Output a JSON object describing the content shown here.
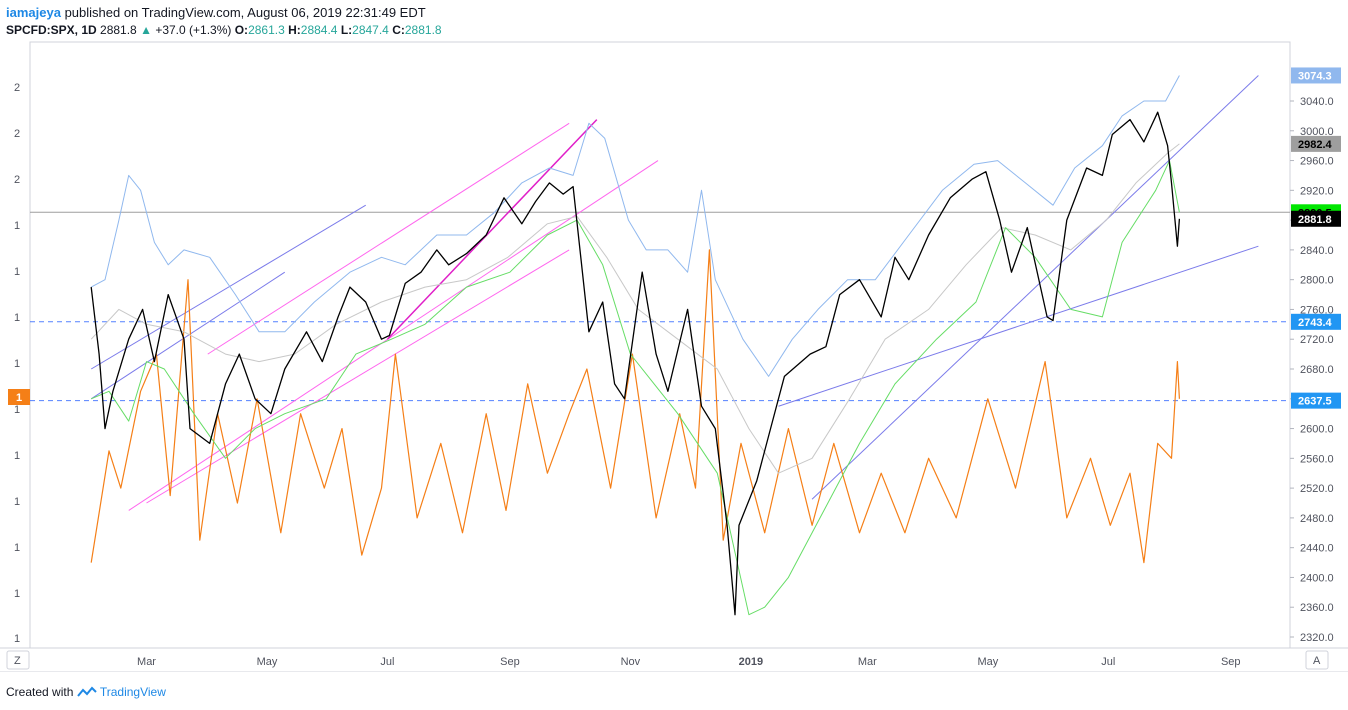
{
  "header": {
    "author": "iamajeya",
    "published": "published on TradingView.com, August 06, 2019 22:31:49 EDT"
  },
  "ticker": {
    "symbol": "SPCFD:SPX, 1D",
    "last": "2881.8",
    "change": "+37.0 (+1.3%)",
    "o_label": "O:",
    "o": "2861.3",
    "h_label": "H:",
    "h": "2884.4",
    "l_label": "L:",
    "l": "2847.4",
    "c_label": "C:",
    "c": "2881.8"
  },
  "footer": {
    "created": "Created with",
    "brand": "TradingView"
  },
  "toolbar": {
    "left": "Z",
    "right": "A"
  },
  "colors": {
    "price": "#000000",
    "upper_band": "#90b8ee",
    "mid_band": "#c8c8c8",
    "lower_band": "#66dd66",
    "oscillator": "#f57f17",
    "channel": "#7b7bea",
    "pink": "#ff66ee",
    "magenta": "#e020c8",
    "hline": "#2962ff"
  },
  "chart_data": {
    "type": "line",
    "x_ticks": [
      "Mar",
      "May",
      "Jul",
      "Sep",
      "Nov",
      "2019",
      "Mar",
      "May",
      "Jul",
      "Sep"
    ],
    "y_ticks": [
      3040.0,
      3000.0,
      2960.0,
      2920.0,
      2880.0,
      2840.0,
      2800.0,
      2760.0,
      2720.0,
      2680.0,
      2640.0,
      2600.0,
      2560.0,
      2520.0,
      2480.0,
      2440.0,
      2400.0,
      2360.0,
      2320.0
    ],
    "ylim": [
      2310,
      3095
    ],
    "left_ticks": [
      "2",
      "2",
      "2",
      "1",
      "1",
      "1",
      "1",
      "1",
      "1",
      "1",
      "1",
      "1",
      "1"
    ],
    "oscillator_marker": "1",
    "price_labels": [
      {
        "value": 3074.3,
        "text": "3074.3",
        "bg": "#90b8ee",
        "fg": "#ffffff"
      },
      {
        "value": 2982.4,
        "text": "2982.4",
        "bg": "#9e9e9e",
        "fg": "#000000"
      },
      {
        "value": 2890.5,
        "text": "2890.5",
        "bg": "#00e600",
        "fg": "#000000"
      },
      {
        "value": 2881.8,
        "text": "2881.8",
        "bg": "#000000",
        "fg": "#ffffff"
      },
      {
        "value": 2743.4,
        "text": "2743.4",
        "bg": "#2196f3",
        "fg": "#ffffff"
      },
      {
        "value": 2637.5,
        "text": "2637.5",
        "bg": "#2196f3",
        "fg": "#ffffff"
      }
    ],
    "horizontal_lines": [
      {
        "value": 2890.5,
        "style": "solid",
        "color": "#9e9e9e"
      },
      {
        "value": 2743.4,
        "style": "dashed",
        "color": "#2962ff"
      },
      {
        "value": 2637.5,
        "style": "dashed",
        "color": "#2962ff"
      }
    ],
    "price_series": {
      "name": "",
      "points": [
        [
          "2018-02-01",
          2790
        ],
        [
          "2018-02-05",
          2700
        ],
        [
          "2018-02-08",
          2600
        ],
        [
          "2018-02-12",
          2650
        ],
        [
          "2018-02-20",
          2720
        ],
        [
          "2018-02-27",
          2760
        ],
        [
          "2018-03-05",
          2690
        ],
        [
          "2018-03-12",
          2780
        ],
        [
          "2018-03-20",
          2720
        ],
        [
          "2018-03-23",
          2600
        ],
        [
          "2018-04-02",
          2580
        ],
        [
          "2018-04-10",
          2660
        ],
        [
          "2018-04-17",
          2700
        ],
        [
          "2018-04-25",
          2640
        ],
        [
          "2018-05-03",
          2620
        ],
        [
          "2018-05-10",
          2680
        ],
        [
          "2018-05-21",
          2730
        ],
        [
          "2018-05-29",
          2690
        ],
        [
          "2018-06-06",
          2750
        ],
        [
          "2018-06-12",
          2790
        ],
        [
          "2018-06-20",
          2770
        ],
        [
          "2018-06-28",
          2720
        ],
        [
          "2018-07-02",
          2725
        ],
        [
          "2018-07-10",
          2795
        ],
        [
          "2018-07-18",
          2810
        ],
        [
          "2018-07-26",
          2840
        ],
        [
          "2018-08-01",
          2820
        ],
        [
          "2018-08-10",
          2835
        ],
        [
          "2018-08-20",
          2860
        ],
        [
          "2018-08-29",
          2910
        ],
        [
          "2018-09-07",
          2875
        ],
        [
          "2018-09-14",
          2905
        ],
        [
          "2018-09-21",
          2930
        ],
        [
          "2018-09-28",
          2915
        ],
        [
          "2018-10-03",
          2925
        ],
        [
          "2018-10-11",
          2730
        ],
        [
          "2018-10-18",
          2770
        ],
        [
          "2018-10-24",
          2660
        ],
        [
          "2018-10-29",
          2640
        ],
        [
          "2018-11-07",
          2810
        ],
        [
          "2018-11-14",
          2700
        ],
        [
          "2018-11-20",
          2650
        ],
        [
          "2018-11-30",
          2760
        ],
        [
          "2018-12-07",
          2630
        ],
        [
          "2018-12-14",
          2600
        ],
        [
          "2018-12-20",
          2470
        ],
        [
          "2018-12-24",
          2350
        ],
        [
          "2018-12-26",
          2470
        ],
        [
          "2019-01-04",
          2530
        ],
        [
          "2019-01-10",
          2590
        ],
        [
          "2019-01-18",
          2670
        ],
        [
          "2019-01-31",
          2700
        ],
        [
          "2019-02-08",
          2710
        ],
        [
          "2019-02-15",
          2780
        ],
        [
          "2019-02-25",
          2800
        ],
        [
          "2019-03-08",
          2750
        ],
        [
          "2019-03-15",
          2830
        ],
        [
          "2019-03-22",
          2800
        ],
        [
          "2019-04-01",
          2860
        ],
        [
          "2019-04-12",
          2910
        ],
        [
          "2019-04-23",
          2935
        ],
        [
          "2019-04-30",
          2945
        ],
        [
          "2019-05-07",
          2880
        ],
        [
          "2019-05-13",
          2810
        ],
        [
          "2019-05-21",
          2870
        ],
        [
          "2019-05-31",
          2750
        ],
        [
          "2019-06-03",
          2745
        ],
        [
          "2019-06-10",
          2880
        ],
        [
          "2019-06-20",
          2950
        ],
        [
          "2019-06-28",
          2940
        ],
        [
          "2019-07-03",
          2995
        ],
        [
          "2019-07-12",
          3015
        ],
        [
          "2019-07-19",
          2985
        ],
        [
          "2019-07-26",
          3025
        ],
        [
          "2019-07-31",
          2980
        ],
        [
          "2019-08-02",
          2930
        ],
        [
          "2019-08-05",
          2845
        ],
        [
          "2019-08-06",
          2881.8
        ]
      ]
    },
    "upper_band": {
      "name": "",
      "points": [
        [
          "2018-02-01",
          2790
        ],
        [
          "2018-02-08",
          2800
        ],
        [
          "2018-02-15",
          2880
        ],
        [
          "2018-02-20",
          2940
        ],
        [
          "2018-02-26",
          2920
        ],
        [
          "2018-03-05",
          2850
        ],
        [
          "2018-03-12",
          2820
        ],
        [
          "2018-03-20",
          2840
        ],
        [
          "2018-04-02",
          2830
        ],
        [
          "2018-04-15",
          2780
        ],
        [
          "2018-04-27",
          2730
        ],
        [
          "2018-05-10",
          2730
        ],
        [
          "2018-05-25",
          2770
        ],
        [
          "2018-06-12",
          2810
        ],
        [
          "2018-06-28",
          2830
        ],
        [
          "2018-07-10",
          2820
        ],
        [
          "2018-07-26",
          2860
        ],
        [
          "2018-08-10",
          2860
        ],
        [
          "2018-08-24",
          2890
        ],
        [
          "2018-09-07",
          2930
        ],
        [
          "2018-09-21",
          2950
        ],
        [
          "2018-10-03",
          2940
        ],
        [
          "2018-10-11",
          3010
        ],
        [
          "2018-10-19",
          2990
        ],
        [
          "2018-10-31",
          2880
        ],
        [
          "2018-11-09",
          2840
        ],
        [
          "2018-11-20",
          2840
        ],
        [
          "2018-11-30",
          2810
        ],
        [
          "2018-12-07",
          2920
        ],
        [
          "2018-12-14",
          2800
        ],
        [
          "2018-12-28",
          2720
        ],
        [
          "2019-01-10",
          2670
        ],
        [
          "2019-01-22",
          2720
        ],
        [
          "2019-02-04",
          2760
        ],
        [
          "2019-02-19",
          2800
        ],
        [
          "2019-03-05",
          2800
        ],
        [
          "2019-03-22",
          2860
        ],
        [
          "2019-04-08",
          2920
        ],
        [
          "2019-04-24",
          2955
        ],
        [
          "2019-05-06",
          2960
        ],
        [
          "2019-05-20",
          2930
        ],
        [
          "2019-06-03",
          2900
        ],
        [
          "2019-06-14",
          2950
        ],
        [
          "2019-06-28",
          2980
        ],
        [
          "2019-07-08",
          3020
        ],
        [
          "2019-07-19",
          3040
        ],
        [
          "2019-07-30",
          3040
        ],
        [
          "2019-08-06",
          3074.3
        ]
      ]
    },
    "middle_band": {
      "name": "",
      "points": [
        [
          "2018-02-01",
          2720
        ],
        [
          "2018-02-15",
          2760
        ],
        [
          "2018-03-01",
          2740
        ],
        [
          "2018-03-20",
          2730
        ],
        [
          "2018-04-10",
          2700
        ],
        [
          "2018-04-27",
          2690
        ],
        [
          "2018-05-15",
          2700
        ],
        [
          "2018-06-05",
          2740
        ],
        [
          "2018-06-28",
          2770
        ],
        [
          "2018-07-20",
          2790
        ],
        [
          "2018-08-10",
          2800
        ],
        [
          "2018-08-31",
          2830
        ],
        [
          "2018-09-20",
          2875
        ],
        [
          "2018-10-05",
          2885
        ],
        [
          "2018-10-20",
          2830
        ],
        [
          "2018-11-05",
          2760
        ],
        [
          "2018-11-25",
          2720
        ],
        [
          "2018-12-15",
          2680
        ],
        [
          "2018-12-31",
          2600
        ],
        [
          "2019-01-15",
          2540
        ],
        [
          "2019-02-01",
          2560
        ],
        [
          "2019-02-20",
          2640
        ],
        [
          "2019-03-10",
          2720
        ],
        [
          "2019-04-01",
          2760
        ],
        [
          "2019-04-20",
          2820
        ],
        [
          "2019-05-08",
          2870
        ],
        [
          "2019-05-25",
          2860
        ],
        [
          "2019-06-12",
          2840
        ],
        [
          "2019-06-30",
          2880
        ],
        [
          "2019-07-15",
          2930
        ],
        [
          "2019-07-31",
          2970
        ],
        [
          "2019-08-06",
          2982.4
        ]
      ]
    },
    "lower_band": {
      "name": "",
      "points": [
        [
          "2018-02-01",
          2640
        ],
        [
          "2018-02-10",
          2650
        ],
        [
          "2018-02-20",
          2610
        ],
        [
          "2018-03-01",
          2690
        ],
        [
          "2018-03-10",
          2680
        ],
        [
          "2018-03-25",
          2620
        ],
        [
          "2018-04-10",
          2560
        ],
        [
          "2018-04-25",
          2600
        ],
        [
          "2018-05-10",
          2620
        ],
        [
          "2018-05-31",
          2640
        ],
        [
          "2018-06-15",
          2700
        ],
        [
          "2018-07-03",
          2720
        ],
        [
          "2018-07-20",
          2740
        ],
        [
          "2018-08-10",
          2790
        ],
        [
          "2018-09-01",
          2810
        ],
        [
          "2018-09-20",
          2860
        ],
        [
          "2018-10-05",
          2880
        ],
        [
          "2018-10-18",
          2820
        ],
        [
          "2018-11-01",
          2700
        ],
        [
          "2018-11-25",
          2620
        ],
        [
          "2018-12-15",
          2540
        ],
        [
          "2018-12-31",
          2350
        ],
        [
          "2019-01-08",
          2360
        ],
        [
          "2019-01-20",
          2400
        ],
        [
          "2019-02-05",
          2480
        ],
        [
          "2019-02-25",
          2580
        ],
        [
          "2019-03-15",
          2660
        ],
        [
          "2019-04-05",
          2720
        ],
        [
          "2019-04-25",
          2770
        ],
        [
          "2019-05-10",
          2870
        ],
        [
          "2019-05-25",
          2830
        ],
        [
          "2019-06-12",
          2760
        ],
        [
          "2019-06-28",
          2750
        ],
        [
          "2019-07-08",
          2850
        ],
        [
          "2019-07-25",
          2920
        ],
        [
          "2019-08-01",
          2960
        ],
        [
          "2019-08-06",
          2890.5
        ]
      ]
    },
    "oscillator": {
      "name": "",
      "points": [
        [
          "2018-02-01",
          2420
        ],
        [
          "2018-02-10",
          2570
        ],
        [
          "2018-02-16",
          2520
        ],
        [
          "2018-02-26",
          2650
        ],
        [
          "2018-03-06",
          2700
        ],
        [
          "2018-03-13",
          2510
        ],
        [
          "2018-03-22",
          2800
        ],
        [
          "2018-03-28",
          2450
        ],
        [
          "2018-04-06",
          2620
        ],
        [
          "2018-04-16",
          2500
        ],
        [
          "2018-04-26",
          2640
        ],
        [
          "2018-05-08",
          2460
        ],
        [
          "2018-05-18",
          2620
        ],
        [
          "2018-05-30",
          2520
        ],
        [
          "2018-06-08",
          2600
        ],
        [
          "2018-06-18",
          2430
        ],
        [
          "2018-06-28",
          2520
        ],
        [
          "2018-07-05",
          2700
        ],
        [
          "2018-07-16",
          2480
        ],
        [
          "2018-07-28",
          2580
        ],
        [
          "2018-08-08",
          2460
        ],
        [
          "2018-08-20",
          2620
        ],
        [
          "2018-08-30",
          2490
        ],
        [
          "2018-09-10",
          2660
        ],
        [
          "2018-09-20",
          2540
        ],
        [
          "2018-10-01",
          2620
        ],
        [
          "2018-10-10",
          2680
        ],
        [
          "2018-10-22",
          2520
        ],
        [
          "2018-11-02",
          2700
        ],
        [
          "2018-11-14",
          2480
        ],
        [
          "2018-11-26",
          2620
        ],
        [
          "2018-12-04",
          2520
        ],
        [
          "2018-12-11",
          2840
        ],
        [
          "2018-12-18",
          2450
        ],
        [
          "2018-12-27",
          2580
        ],
        [
          "2019-01-08",
          2460
        ],
        [
          "2019-01-20",
          2600
        ],
        [
          "2019-02-01",
          2470
        ],
        [
          "2019-02-12",
          2580
        ],
        [
          "2019-02-25",
          2460
        ],
        [
          "2019-03-08",
          2540
        ],
        [
          "2019-03-20",
          2460
        ],
        [
          "2019-04-01",
          2560
        ],
        [
          "2019-04-15",
          2480
        ],
        [
          "2019-05-01",
          2640
        ],
        [
          "2019-05-15",
          2520
        ],
        [
          "2019-05-30",
          2690
        ],
        [
          "2019-06-10",
          2480
        ],
        [
          "2019-06-22",
          2560
        ],
        [
          "2019-07-02",
          2470
        ],
        [
          "2019-07-12",
          2540
        ],
        [
          "2019-07-19",
          2420
        ],
        [
          "2019-07-26",
          2580
        ],
        [
          "2019-08-02",
          2560
        ],
        [
          "2019-08-05",
          2690
        ],
        [
          "2019-08-06",
          2640
        ]
      ]
    },
    "trendlines": [
      {
        "style": "channel",
        "from": [
          "2018-02-01",
          2680
        ],
        "to": [
          "2018-06-20",
          2900
        ]
      },
      {
        "style": "channel",
        "from": [
          "2018-02-01",
          2640
        ],
        "to": [
          "2018-05-10",
          2810
        ]
      },
      {
        "style": "channel",
        "from": [
          "2019-02-01",
          2505
        ],
        "to": [
          "2019-09-15",
          3074.3
        ]
      },
      {
        "style": "channel",
        "from": [
          "2019-01-15",
          2630
        ],
        "to": [
          "2019-09-15",
          2845
        ]
      },
      {
        "style": "pink",
        "from": [
          "2018-04-01",
          2700
        ],
        "to": [
          "2018-10-01",
          3010
        ]
      },
      {
        "style": "pink",
        "from": [
          "2018-02-20",
          2490
        ],
        "to": [
          "2018-11-15",
          2960
        ]
      },
      {
        "style": "pink",
        "from": [
          "2018-03-01",
          2500
        ],
        "to": [
          "2018-10-01",
          2840
        ]
      },
      {
        "style": "magenta",
        "from": [
          "2018-07-01",
          2720
        ],
        "to": [
          "2018-10-15",
          3015
        ]
      }
    ]
  }
}
